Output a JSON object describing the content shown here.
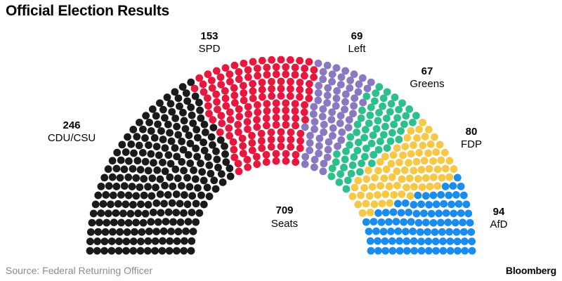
{
  "title": "Official Election Results",
  "chart_data": {
    "type": "parliament",
    "title": "Official Election Results",
    "total_seats": 709,
    "total_label": "Seats",
    "parties": [
      {
        "name": "CDU/CSU",
        "seats": 246,
        "color": "#1a1a1a"
      },
      {
        "name": "SPD",
        "seats": 153,
        "color": "#e8173e"
      },
      {
        "name": "Left",
        "seats": 69,
        "color": "#8b78c2"
      },
      {
        "name": "Greens",
        "seats": 67,
        "color": "#2ec08c"
      },
      {
        "name": "FDP",
        "seats": 80,
        "color": "#f7c845"
      },
      {
        "name": "AfD",
        "seats": 94,
        "color": "#1a8cf0"
      }
    ]
  },
  "labels": {
    "cdu": {
      "num": "246",
      "name": "CDU/CSU"
    },
    "spd": {
      "num": "153",
      "name": "SPD"
    },
    "left": {
      "num": "69",
      "name": "Left"
    },
    "greens": {
      "num": "67",
      "name": "Greens"
    },
    "fdp": {
      "num": "80",
      "name": "FDP"
    },
    "afd": {
      "num": "94",
      "name": "AfD"
    },
    "total": {
      "num": "709",
      "name": "Seats"
    }
  },
  "footer": {
    "source": "Source: Federal Returning Officer",
    "brand": "Bloomberg"
  }
}
